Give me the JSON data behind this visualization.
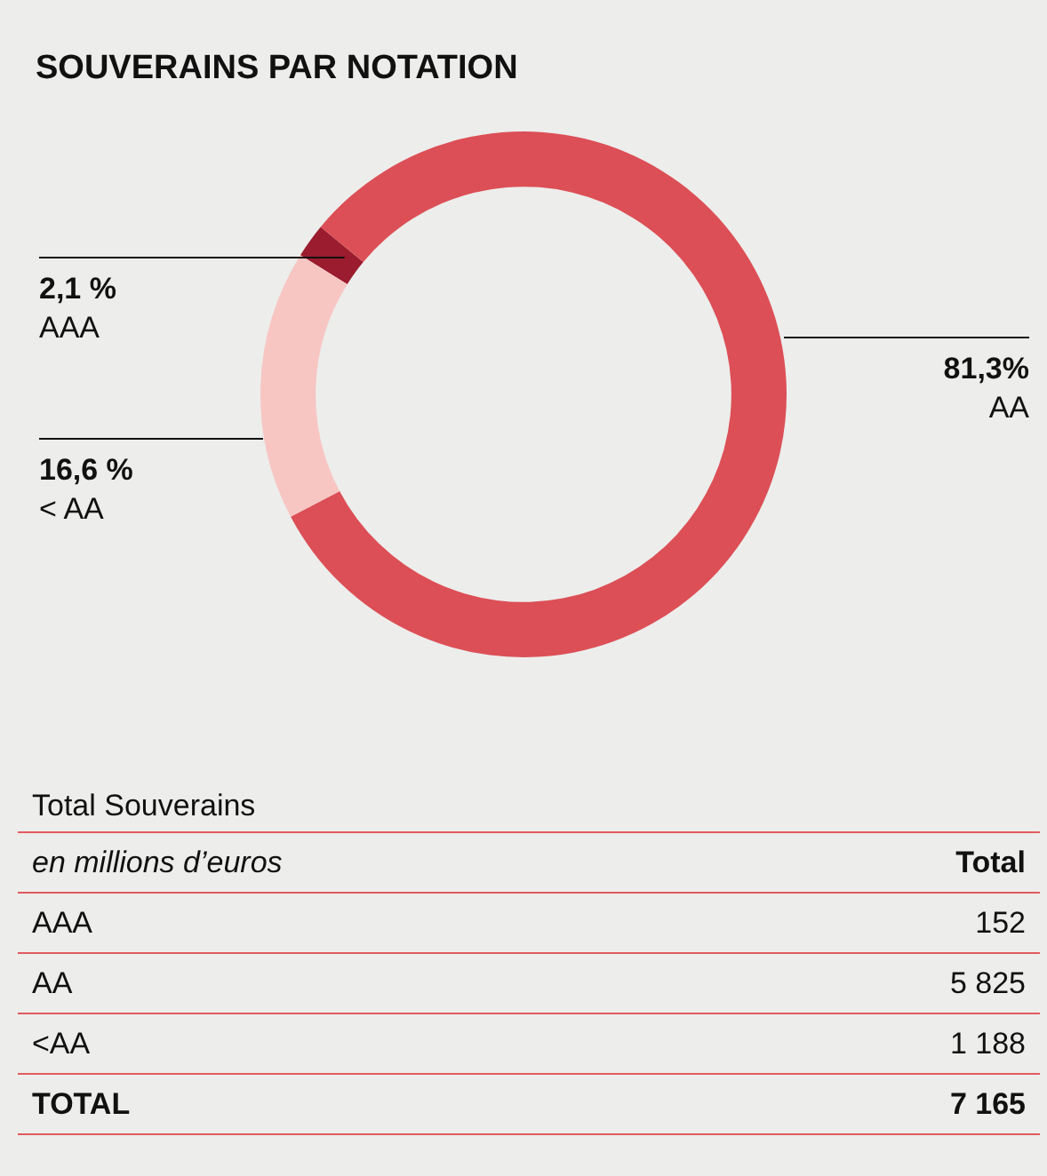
{
  "chart_data": {
    "type": "donut",
    "title": "SOUVERAINS PAR NOTATION",
    "categories": [
      "AAA",
      "AA",
      "< AA"
    ],
    "values": [
      2.1,
      81.3,
      16.6
    ],
    "value_labels": [
      "2,1 %",
      "81,3%",
      "16,6 %"
    ],
    "colors": [
      "#9b1c2e",
      "#dc4f56",
      "#f7c6c3"
    ],
    "legend": false,
    "annotations": [
      "Total Souverains",
      "en millions d’euros",
      "Total",
      "AAA",
      "152",
      "AA",
      "5 825",
      "<AA",
      "1 188",
      "TOTAL",
      "7 165"
    ]
  }
}
